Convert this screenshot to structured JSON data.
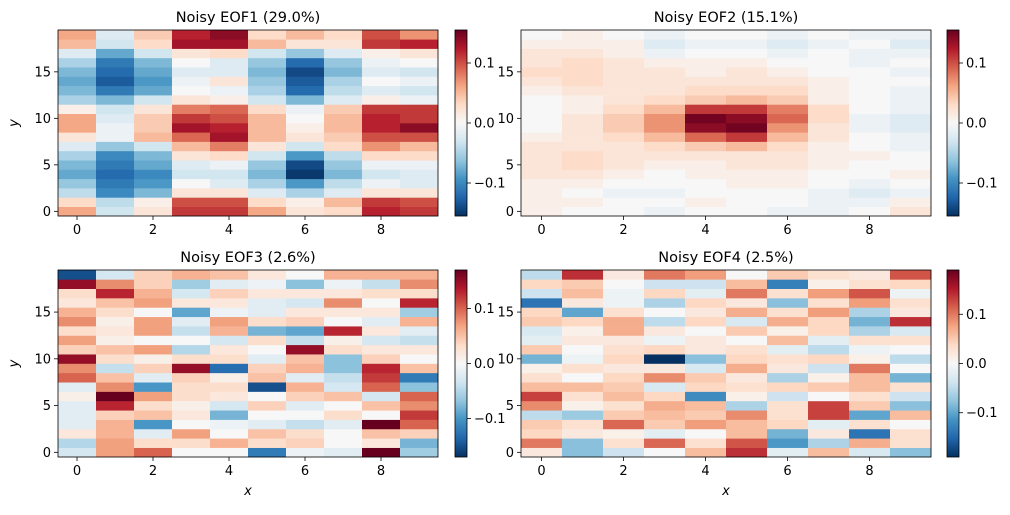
{
  "chart_data": [
    {
      "type": "heatmap",
      "title": "Noisy EOF1 (29.0%)",
      "ylabel": "y",
      "cmap": "RdBu_r",
      "xlim": [
        -0.5,
        9.5
      ],
      "ylim": [
        -0.5,
        19.5
      ],
      "xticks": [
        0,
        2,
        4,
        6,
        8
      ],
      "yticks": [
        0,
        5,
        10,
        15
      ],
      "zlim": [
        -0.155,
        0.155
      ],
      "cticks": [
        {
          "value": -0.1,
          "label": "−0.1"
        },
        {
          "value": 0,
          "label": "0.0"
        },
        0.1
      ],
      "z": [
        [
          0.06,
          -0.03,
          0.02,
          0.11,
          0.11,
          0.06,
          0.02,
          0.03,
          0.12,
          0.11
        ],
        [
          0.03,
          -0.04,
          0.01,
          0.1,
          0.1,
          0.03,
          0.01,
          0.05,
          0.11,
          0.1
        ],
        [
          -0.04,
          -0.1,
          -0.07,
          0.02,
          0.02,
          -0.02,
          -0.05,
          -0.02,
          0.02,
          0.02
        ],
        [
          -0.06,
          -0.11,
          -0.09,
          0,
          -0.02,
          -0.05,
          -0.09,
          -0.04,
          -0.01,
          -0.02
        ],
        [
          -0.08,
          -0.12,
          -0.1,
          -0.03,
          -0.03,
          -0.07,
          -0.15,
          -0.07,
          -0.03,
          -0.02
        ],
        [
          -0.07,
          -0.11,
          -0.08,
          -0.02,
          -0.01,
          -0.06,
          -0.14,
          -0.06,
          -0.01,
          -0.01
        ],
        [
          -0.05,
          -0.1,
          -0.07,
          0.02,
          0.03,
          -0.03,
          -0.09,
          -0.04,
          0.03,
          0.03
        ],
        [
          -0.02,
          -0.06,
          -0.03,
          0.05,
          0.08,
          0.02,
          -0.03,
          0.03,
          0.07,
          0.05
        ],
        [
          0.02,
          -0.01,
          0.05,
          0.09,
          0.13,
          0.05,
          0.02,
          0.04,
          0.1,
          0.1
        ],
        [
          0.06,
          -0.01,
          0.04,
          0.13,
          0.12,
          0.05,
          0.01,
          0.05,
          0.12,
          0.14
        ],
        [
          0.06,
          -0.02,
          0.04,
          0.11,
          0.1,
          0.05,
          0,
          0.05,
          0.12,
          0.11
        ],
        [
          0.01,
          -0.03,
          0.02,
          0.08,
          0.09,
          0.03,
          -0.01,
          0.04,
          0.11,
          0.11
        ],
        [
          -0.05,
          -0.07,
          -0.03,
          0.02,
          0.01,
          -0.03,
          -0.07,
          -0.02,
          0.01,
          -0.01
        ],
        [
          -0.07,
          -0.11,
          -0.08,
          0,
          -0.01,
          -0.05,
          -0.12,
          -0.04,
          -0.02,
          -0.03
        ],
        [
          -0.08,
          -0.13,
          -0.09,
          -0.01,
          0.02,
          -0.06,
          -0.13,
          -0.05,
          0,
          -0.01
        ],
        [
          -0.07,
          -0.12,
          -0.08,
          -0.02,
          -0.02,
          -0.07,
          -0.14,
          -0.07,
          -0.02,
          -0.03
        ],
        [
          -0.05,
          -0.11,
          -0.07,
          0,
          -0.02,
          -0.06,
          -0.12,
          -0.06,
          -0.01,
          0
        ],
        [
          -0.02,
          -0.08,
          -0.03,
          0.02,
          0.03,
          -0.03,
          -0.06,
          -0.02,
          0.01,
          0.02
        ],
        [
          0.05,
          -0.03,
          0.03,
          0.13,
          0.13,
          0.05,
          0.02,
          0.02,
          0.11,
          0.12
        ],
        [
          0.06,
          -0.02,
          0.04,
          0.12,
          0.14,
          0.03,
          0.05,
          0.03,
          0.1,
          0.07
        ]
      ]
    },
    {
      "type": "heatmap",
      "title": "Noisy EOF2 (15.1%)",
      "cmap": "RdBu_r",
      "xlim": [
        -0.5,
        9.5
      ],
      "ylim": [
        -0.5,
        19.5
      ],
      "xticks": [
        0,
        2,
        4,
        6,
        8
      ],
      "yticks": [
        0,
        5,
        10,
        15
      ],
      "zlim": [
        -0.155,
        0.155
      ],
      "cticks": [
        {
          "value": -0.1,
          "label": "−0.1"
        },
        {
          "value": 0,
          "label": "0.0"
        },
        0.1
      ],
      "z": [
        [
          0.01,
          0,
          0,
          -0.01,
          0,
          0,
          -0.01,
          -0.01,
          0,
          0.02
        ],
        [
          0.01,
          0.01,
          0,
          0,
          0.01,
          0,
          0,
          -0.01,
          -0.01,
          0.01
        ],
        [
          0.01,
          0,
          -0.01,
          -0.01,
          0,
          0,
          0,
          -0.01,
          -0.02,
          -0.01
        ],
        [
          0.01,
          0.01,
          0,
          0,
          0,
          0.01,
          0.01,
          0,
          -0.01,
          0
        ],
        [
          0.02,
          0.02,
          0.01,
          0,
          0.01,
          0.01,
          0.01,
          0,
          0,
          0.01
        ],
        [
          0.02,
          0.03,
          0.02,
          0.01,
          0.01,
          0.02,
          0.02,
          0.01,
          0,
          0
        ],
        [
          0.02,
          0.03,
          0.02,
          0.02,
          0.02,
          0.02,
          0.02,
          0.01,
          0.01,
          0
        ],
        [
          0.02,
          0.02,
          0.02,
          0.03,
          0.04,
          0.05,
          0.03,
          0.01,
          0,
          -0.01
        ],
        [
          0.01,
          0.02,
          0.03,
          0.05,
          0.09,
          0.11,
          0.05,
          0.02,
          0,
          -0.01
        ],
        [
          0,
          0.02,
          0.04,
          0.07,
          0.14,
          0.15,
          0.07,
          0.02,
          -0.01,
          -0.02
        ],
        [
          0,
          0.02,
          0.04,
          0.07,
          0.15,
          0.14,
          0.09,
          0.03,
          -0.01,
          -0.02
        ],
        [
          0,
          0.01,
          0.03,
          0.05,
          0.11,
          0.11,
          0.08,
          0.03,
          0,
          -0.01
        ],
        [
          0,
          0.01,
          0.02,
          0.03,
          0.04,
          0.05,
          0.04,
          0.01,
          0,
          -0.01
        ],
        [
          0.01,
          0.02,
          0.02,
          0.02,
          0.03,
          0.03,
          0.03,
          0.01,
          0,
          -0.01
        ],
        [
          0.02,
          0.03,
          0.02,
          0.02,
          0.02,
          0.02,
          0.02,
          0.01,
          0,
          0
        ],
        [
          0.03,
          0.03,
          0.02,
          0.02,
          0.01,
          0.02,
          0.01,
          0,
          0,
          -0.01
        ],
        [
          0.02,
          0.03,
          0.02,
          0.01,
          0.01,
          0.01,
          0,
          0,
          -0.01,
          0
        ],
        [
          0.02,
          0.02,
          0.01,
          -0.01,
          0,
          0,
          -0.01,
          0,
          -0.01,
          -0.01
        ],
        [
          0.01,
          0.01,
          0.01,
          -0.02,
          -0.01,
          -0.01,
          -0.02,
          -0.01,
          0,
          -0.02
        ],
        [
          0,
          0.01,
          0,
          -0.01,
          0,
          0,
          -0.01,
          0,
          -0.01,
          -0.01
        ]
      ]
    },
    {
      "type": "heatmap",
      "title": "Noisy EOF3 (2.6%)",
      "xlabel": "x",
      "ylabel": "y",
      "cmap": "RdBu_r",
      "xlim": [
        -0.5,
        9.5
      ],
      "ylim": [
        -0.5,
        19.5
      ],
      "xticks": [
        0,
        2,
        4,
        6,
        8
      ],
      "yticks": [
        0,
        5,
        10,
        15
      ],
      "zlim": [
        -0.17,
        0.17
      ],
      "cticks": [
        {
          "value": -0.1,
          "label": "−0.1"
        },
        {
          "value": 0,
          "label": "0.0"
        },
        0.1
      ],
      "z": [
        [
          -0.03,
          0.07,
          0.1,
          0,
          0,
          -0.12,
          -0.01,
          -0.02,
          0.17,
          -0.06
        ],
        [
          -0.05,
          0.07,
          0.03,
          0.03,
          0.06,
          0.03,
          0.04,
          0,
          0.02,
          -0.08
        ],
        [
          0.02,
          0.06,
          -0.02,
          0.07,
          0,
          0.05,
          0.03,
          0,
          0.05,
          0.04
        ],
        [
          -0.02,
          0.06,
          -0.1,
          0,
          -0.01,
          -0.02,
          -0.04,
          -0.02,
          0.17,
          0.1
        ],
        [
          -0.02,
          0.04,
          0.05,
          0.02,
          -0.08,
          0,
          0,
          0.03,
          0,
          0.12
        ],
        [
          -0.02,
          0.13,
          0.03,
          0.01,
          -0.03,
          0.04,
          -0.02,
          0,
          0.05,
          0.08
        ],
        [
          0.01,
          0.17,
          0.07,
          0.03,
          0.02,
          0,
          0.04,
          0.05,
          -0.03,
          0.1
        ],
        [
          -0.02,
          0.08,
          -0.1,
          0.03,
          0.03,
          -0.15,
          0.06,
          -0.03,
          0.1,
          -0.07
        ],
        [
          0.1,
          0.05,
          -0.02,
          0.04,
          0.01,
          0.05,
          -0.02,
          -0.04,
          0.12,
          -0.12
        ],
        [
          0.08,
          -0.04,
          0.04,
          0.15,
          -0.13,
          0.04,
          0.06,
          -0.07,
          0.13,
          0.05
        ],
        [
          0.15,
          0.03,
          0.01,
          0.03,
          0.03,
          -0.02,
          0.05,
          -0.07,
          0.04,
          0
        ],
        [
          0.04,
          0.05,
          0.07,
          -0.05,
          0.02,
          0,
          0.15,
          0.03,
          0.02,
          0.02
        ],
        [
          0.07,
          0.01,
          0,
          0,
          -0.03,
          0.03,
          -0.04,
          0.01,
          -0.03,
          -0.04
        ],
        [
          0.03,
          0.02,
          0.07,
          -0.04,
          0.06,
          -0.08,
          -0.09,
          0.13,
          0.02,
          -0.02
        ],
        [
          0.08,
          0.01,
          0.07,
          -0.02,
          0.07,
          0.03,
          0.04,
          0,
          -0.02,
          0.06
        ],
        [
          0.06,
          0.03,
          0,
          -0.09,
          -0.01,
          -0.02,
          0.02,
          0.02,
          0.02,
          -0.06
        ],
        [
          0.02,
          0.05,
          0.07,
          0.02,
          0.02,
          -0.02,
          -0.03,
          0.08,
          0,
          0.13
        ],
        [
          0.03,
          0.13,
          0.06,
          -0.03,
          0.04,
          0.02,
          0.02,
          0.02,
          0.03,
          0.03
        ],
        [
          0.15,
          0.08,
          0.04,
          -0.06,
          -0.02,
          -0.01,
          -0.07,
          -0.01,
          -0.04,
          0.08
        ],
        [
          -0.15,
          -0.03,
          0.04,
          0.06,
          0.05,
          0.02,
          0,
          0.06,
          0.06,
          0.06
        ]
      ]
    },
    {
      "type": "heatmap",
      "title": "Noisy EOF4 (2.5%)",
      "xlabel": "x",
      "cmap": "RdBu_r",
      "xlim": [
        -0.5,
        9.5
      ],
      "ylim": [
        -0.5,
        19.5
      ],
      "xticks": [
        0,
        2,
        4,
        6,
        8
      ],
      "yticks": [
        0,
        5,
        10,
        15
      ],
      "zlim": [
        -0.19,
        0.19
      ],
      "cticks": [
        {
          "value": -0.1,
          "label": "−0.1"
        },
        {
          "value": 0,
          "label": "0.0"
        },
        0.1
      ],
      "z": [
        [
          0.02,
          -0.08,
          -0.04,
          0,
          0.06,
          0.14,
          -0.02,
          0.06,
          -0.03,
          -0.08
        ],
        [
          0.1,
          -0.08,
          0.03,
          0.11,
          0.03,
          0.12,
          -0.11,
          -0.06,
          0.07,
          0.03
        ],
        [
          0.04,
          0.02,
          0.01,
          -0.02,
          0,
          0.06,
          -0.09,
          0.02,
          -0.14,
          0.03
        ],
        [
          0.05,
          0.03,
          0.11,
          0.05,
          0.08,
          0.06,
          0.04,
          -0.02,
          0.03,
          0
        ],
        [
          -0.05,
          -0.07,
          0.05,
          0.06,
          0.05,
          0.09,
          0.03,
          0.13,
          -0.1,
          0.06
        ],
        [
          0.09,
          0.01,
          0.03,
          0.07,
          0.06,
          -0.06,
          0.03,
          0.13,
          0.05,
          -0.08
        ],
        [
          0.13,
          0.03,
          0.06,
          0.04,
          -0.12,
          0.01,
          -0.04,
          0,
          0.03,
          -0.04
        ],
        [
          0.06,
          0.06,
          0.05,
          -0.03,
          0.04,
          0.03,
          0.04,
          0.05,
          0.06,
          0.03
        ],
        [
          0.03,
          0,
          0.04,
          0.09,
          0.05,
          0.02,
          -0.06,
          0.01,
          0.06,
          -0.09
        ],
        [
          0.01,
          0.03,
          0.02,
          0.02,
          -0.03,
          0.07,
          0.02,
          -0.04,
          0.1,
          0
        ],
        [
          -0.09,
          -0.01,
          0.04,
          -0.19,
          -0.08,
          0.04,
          0.03,
          0.04,
          0.01,
          -0.05
        ],
        [
          0.05,
          0,
          0.03,
          0.04,
          0.02,
          0.03,
          -0.02,
          -0.05,
          -0.01,
          0
        ],
        [
          -0.02,
          0.02,
          0.02,
          -0.01,
          0.02,
          0,
          0.06,
          -0.02,
          0.03,
          0.03
        ],
        [
          -0.03,
          0.01,
          0.07,
          0.02,
          0,
          0.05,
          0.01,
          0.04,
          -0.06,
          -0.03
        ],
        [
          0.05,
          0.04,
          0.07,
          -0.05,
          0.04,
          -0.03,
          0.07,
          0.04,
          -0.09,
          0.14
        ],
        [
          0.04,
          -0.1,
          0.03,
          0,
          0.02,
          0.07,
          0.03,
          0.08,
          -0.06,
          0.02
        ],
        [
          -0.14,
          0.02,
          -0.01,
          -0.06,
          0.04,
          0.02,
          -0.08,
          0.03,
          0.08,
          0.03
        ],
        [
          -0.04,
          0.06,
          -0.01,
          0.04,
          -0.02,
          0.1,
          0.03,
          0.08,
          0.12,
          -0.01
        ],
        [
          0.04,
          0.05,
          0,
          -0.04,
          -0.04,
          0.06,
          -0.13,
          0.01,
          0.03,
          0.04
        ],
        [
          -0.05,
          0.14,
          0.02,
          0.1,
          0.08,
          0,
          0.05,
          0.03,
          0.02,
          0.12
        ]
      ]
    }
  ]
}
